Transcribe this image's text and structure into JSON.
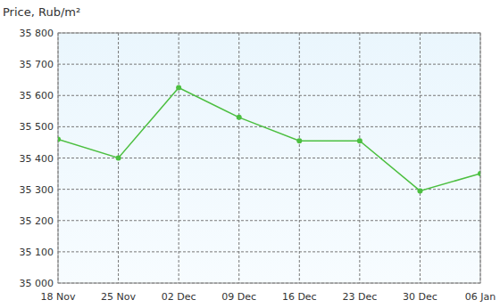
{
  "chart_data": {
    "type": "line",
    "title": "Price, Rub/m²",
    "categories": [
      "18 Nov",
      "25 Nov",
      "02 Dec",
      "09 Dec",
      "16 Dec",
      "23 Dec",
      "30 Dec",
      "06 Jan"
    ],
    "values": [
      35460,
      35400,
      35625,
      35530,
      35455,
      35455,
      35295,
      35350
    ],
    "color": "#4cbf40",
    "marker": "circle",
    "grid": true,
    "ylim": [
      35000,
      35800
    ],
    "yticks": [
      {
        "value": 35000,
        "label": "35 000"
      },
      {
        "value": 35100,
        "label": "35 100"
      },
      {
        "value": 35200,
        "label": "35 200"
      },
      {
        "value": 35300,
        "label": "35 300"
      },
      {
        "value": 35400,
        "label": "35 400"
      },
      {
        "value": 35500,
        "label": "35 500"
      },
      {
        "value": 35600,
        "label": "35 600"
      },
      {
        "value": 35700,
        "label": "35 700"
      },
      {
        "value": 35800,
        "label": "35 800"
      }
    ]
  }
}
